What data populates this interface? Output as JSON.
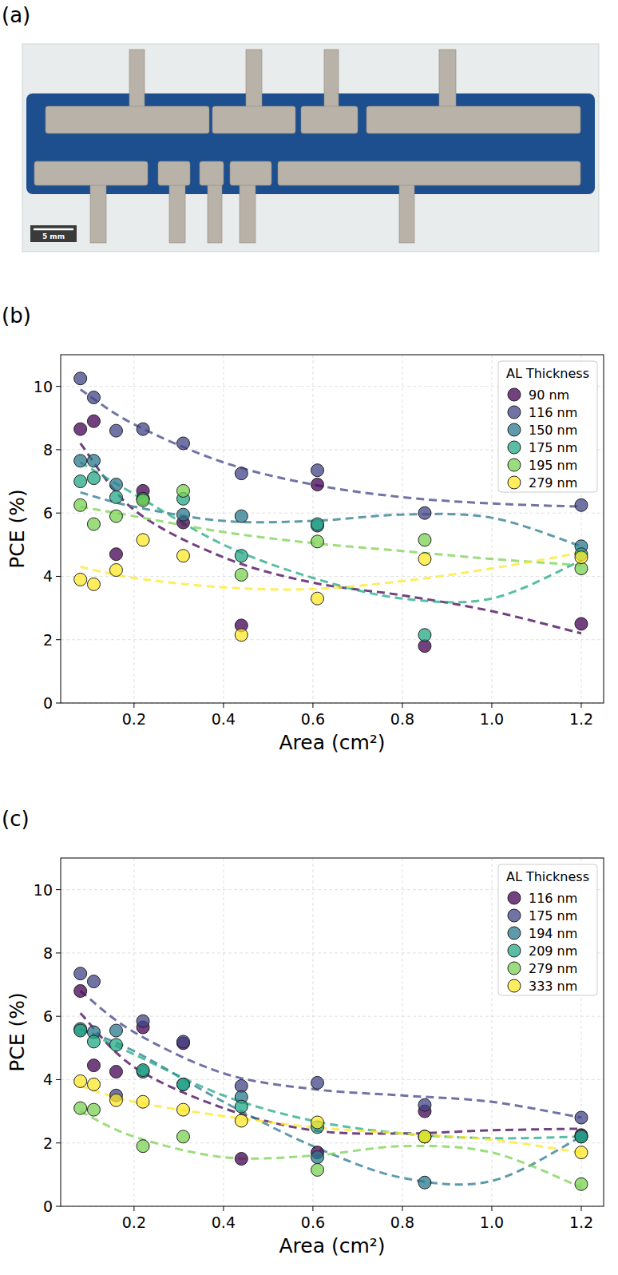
{
  "photo": {
    "panel": "(a)",
    "scale_bar": "5 mm"
  },
  "chart_data": [
    {
      "type": "scatter",
      "panel": "(b)",
      "x_label": "Area (cm²)",
      "y_label": "PCE (%)",
      "legend_title": "AL Thickness",
      "legend": "upper right",
      "grid": true,
      "xlim": [
        0.036,
        1.25
      ],
      "ylim": [
        0,
        11
      ],
      "xticks": [
        0.2,
        0.4,
        0.6,
        0.8,
        {
          "value": 1,
          "label": "1.0"
        },
        1.2
      ],
      "yticks": [
        0,
        2,
        4,
        6,
        8,
        10
      ],
      "x": [
        0.08,
        0.11,
        0.16,
        0.22,
        0.31,
        0.44,
        0.61,
        0.85,
        1.2
      ],
      "fit_x": [
        0.08,
        0.2,
        0.4,
        0.6,
        0.8,
        1.0,
        1.2
      ],
      "series": [
        {
          "name": "90 nm",
          "color": "#440154",
          "marker": "circle",
          "line_style": "dashed",
          "values": [
            8.65,
            8.9,
            4.7,
            6.7,
            5.7,
            2.45,
            6.9,
            1.8,
            2.5
          ],
          "fit_values": [
            8.2,
            6.1,
            4.6,
            3.8,
            3.4,
            2.9,
            2.2
          ]
        },
        {
          "name": "116 nm",
          "color": "#414487",
          "marker": "circle",
          "line_style": "dashed",
          "values": [
            10.25,
            9.65,
            8.6,
            8.65,
            8.2,
            7.25,
            7.35,
            6.0,
            6.25
          ],
          "fit_values": [
            9.9,
            8.8,
            7.6,
            6.9,
            6.5,
            6.3,
            6.2
          ]
        },
        {
          "name": "150 nm",
          "color": "#2a788e",
          "marker": "circle",
          "line_style": "dashed",
          "values": [
            7.65,
            7.65,
            6.9,
            6.45,
            5.95,
            5.9,
            5.6,
            null,
            4.95
          ],
          "fit_values": [
            6.65,
            6.2,
            5.75,
            5.75,
            5.95,
            5.85,
            4.95
          ]
        },
        {
          "name": "175 nm",
          "color": "#22a884",
          "marker": "circle",
          "line_style": "dashed",
          "values": [
            7.0,
            7.1,
            6.5,
            6.45,
            6.45,
            4.65,
            5.65,
            2.15,
            4.7
          ],
          "fit_values": [
            7.6,
            6.6,
            5.0,
            3.95,
            3.3,
            3.3,
            4.5
          ]
        },
        {
          "name": "195 nm",
          "color": "#7ad151",
          "marker": "circle",
          "line_style": "dashed",
          "values": [
            6.25,
            5.65,
            5.9,
            6.4,
            6.7,
            4.05,
            5.1,
            5.15,
            4.25
          ],
          "fit_values": [
            6.2,
            5.9,
            5.4,
            5.05,
            4.8,
            4.55,
            4.35
          ]
        },
        {
          "name": "279 nm",
          "color": "#fde725",
          "marker": "circle",
          "line_style": "dashed",
          "values": [
            3.9,
            3.75,
            4.2,
            5.15,
            4.65,
            2.15,
            3.3,
            4.55,
            4.6
          ],
          "fit_values": [
            4.3,
            3.95,
            3.65,
            3.6,
            3.85,
            4.25,
            4.75
          ]
        }
      ]
    },
    {
      "type": "scatter",
      "panel": "(c)",
      "x_label": "Area (cm²)",
      "y_label": "PCE (%)",
      "legend_title": "AL Thickness",
      "legend": "upper right",
      "grid": true,
      "xlim": [
        0.036,
        1.25
      ],
      "ylim": [
        0,
        11
      ],
      "xticks": [
        0.2,
        0.4,
        0.6,
        0.8,
        {
          "value": 1,
          "label": "1.0"
        },
        1.2
      ],
      "yticks": [
        0,
        2,
        4,
        6,
        8,
        10
      ],
      "x": [
        0.08,
        0.11,
        0.16,
        0.22,
        0.31,
        0.44,
        0.61,
        0.85,
        1.2
      ],
      "fit_x": [
        0.08,
        0.2,
        0.4,
        0.6,
        0.8,
        1.0,
        1.2
      ],
      "series": [
        {
          "name": "116 nm",
          "color": "#440154",
          "marker": "circle",
          "line_style": "dashed",
          "values": [
            6.8,
            4.45,
            4.25,
            5.65,
            5.15,
            1.5,
            1.7,
            3.0,
            2.25
          ],
          "fit_values": [
            6.1,
            4.4,
            3.1,
            2.4,
            2.3,
            2.4,
            2.45
          ]
        },
        {
          "name": "175 nm",
          "color": "#414487",
          "marker": "circle",
          "line_style": "dashed",
          "values": [
            7.35,
            7.1,
            3.5,
            5.85,
            5.2,
            3.8,
            3.9,
            3.2,
            2.8
          ],
          "fit_values": [
            6.8,
            5.5,
            4.2,
            3.7,
            3.5,
            3.3,
            2.8
          ]
        },
        {
          "name": "194 nm",
          "color": "#2a788e",
          "marker": "circle",
          "line_style": "dashed",
          "values": [
            5.6,
            5.5,
            5.55,
            4.25,
            3.85,
            3.45,
            1.55,
            0.75,
            2.2
          ],
          "fit_values": [
            5.6,
            4.9,
            3.3,
            1.9,
            0.9,
            0.8,
            2.2
          ]
        },
        {
          "name": "209 nm",
          "color": "#22a884",
          "marker": "circle",
          "line_style": "dashed",
          "values": [
            5.55,
            5.2,
            5.1,
            4.3,
            3.85,
            3.15,
            2.5,
            2.2,
            2.2
          ],
          "fit_values": [
            5.6,
            4.8,
            3.5,
            2.7,
            2.3,
            2.15,
            2.2
          ]
        },
        {
          "name": "279 nm",
          "color": "#7ad151",
          "marker": "circle",
          "line_style": "dashed",
          "values": [
            3.1,
            3.05,
            null,
            1.9,
            2.2,
            null,
            1.15,
            2.2,
            0.7
          ],
          "fit_values": [
            3.0,
            2.2,
            1.55,
            1.6,
            1.9,
            1.7,
            0.6
          ]
        },
        {
          "name": "333 nm",
          "color": "#fde725",
          "marker": "circle",
          "line_style": "dashed",
          "values": [
            3.95,
            3.85,
            3.35,
            3.3,
            3.05,
            2.7,
            2.65,
            2.2,
            1.7
          ],
          "fit_values": [
            3.8,
            3.3,
            2.85,
            2.5,
            2.3,
            2.1,
            1.7
          ]
        }
      ]
    }
  ]
}
